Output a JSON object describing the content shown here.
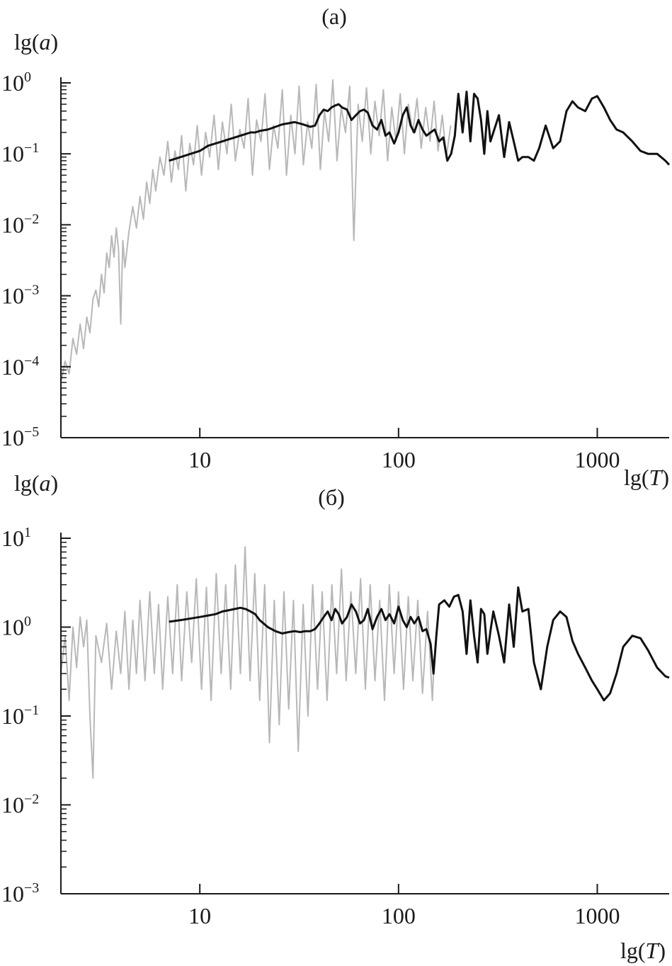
{
  "figure": {
    "colors": {
      "raw": "#b8b8b8",
      "smooth": "#111111",
      "axis": "#1a1a1a"
    }
  },
  "chart_data": [
    {
      "type": "line",
      "panel_label": "(a)",
      "ylabel": "lg(a)",
      "xlabel": "lg(T)",
      "xscale": "log",
      "yscale": "log",
      "xlim": [
        2,
        2300
      ],
      "ylim": [
        1e-05,
        1
      ],
      "x_ticks": [
        10,
        100,
        1000
      ],
      "x_tick_labels": [
        "10",
        "100",
        "1000"
      ],
      "y_ticks": [
        1e-05,
        0.0001,
        0.001,
        0.01,
        0.1,
        1
      ],
      "y_tick_labels": [
        {
          "base": "10",
          "exp": "−5"
        },
        {
          "base": "10",
          "exp": "−4"
        },
        {
          "base": "10",
          "exp": "−3"
        },
        {
          "base": "10",
          "exp": "−2"
        },
        {
          "base": "10",
          "exp": "−1"
        },
        {
          "base": "10",
          "exp": "0"
        }
      ],
      "series": [
        {
          "style": "raw",
          "x": [
            2.0,
            2.1,
            2.2,
            2.3,
            2.4,
            2.5,
            2.6,
            2.7,
            2.8,
            2.9,
            3.0,
            3.1,
            3.2,
            3.3,
            3.4,
            3.5,
            3.6,
            3.7,
            3.8,
            3.9,
            4.0,
            4.1,
            4.2,
            4.4,
            4.6,
            4.8,
            5.0,
            5.2,
            5.4,
            5.6,
            5.8,
            6.0,
            6.3,
            6.6,
            6.9,
            7.2,
            7.5,
            7.8,
            8.1,
            8.5,
            8.9,
            9.3,
            9.7,
            10.2,
            10.7,
            11.2,
            11.8,
            12.4,
            13.0,
            13.7,
            14.4,
            15.1,
            15.9,
            16.7,
            17.5,
            18.4,
            19.3,
            20.3,
            21.3,
            22.4,
            23.5,
            24.7,
            26.0,
            27.3,
            28.7,
            30.1,
            31.6,
            33.2,
            34.9,
            36.6,
            38.5,
            40.4,
            42.4,
            44.5,
            46.7,
            49.0,
            51.5,
            54.1,
            56.8,
            59.6,
            62.6,
            65.7,
            69.0,
            72.5,
            76.1,
            79.9,
            83.9,
            88.1,
            92.5,
            97.1,
            102,
            107,
            112,
            118,
            124,
            130,
            137,
            144,
            151,
            158,
            166,
            174,
            183
          ],
          "y": [
            6e-05,
            0.00012,
            8e-05,
            0.00025,
            0.00015,
            0.0004,
            0.00018,
            0.0005,
            0.0003,
            0.0009,
            0.0012,
            0.0007,
            0.002,
            0.0011,
            0.004,
            0.0025,
            0.007,
            0.0035,
            0.009,
            0.0045,
            0.0004,
            0.006,
            0.0025,
            0.008,
            0.018,
            0.009,
            0.025,
            0.012,
            0.04,
            0.02,
            0.06,
            0.03,
            0.09,
            0.05,
            0.15,
            0.04,
            0.11,
            0.06,
            0.18,
            0.03,
            0.14,
            0.07,
            0.25,
            0.05,
            0.2,
            0.09,
            0.35,
            0.06,
            0.28,
            0.1,
            0.5,
            0.08,
            0.22,
            0.12,
            0.6,
            0.05,
            0.3,
            0.15,
            0.7,
            0.06,
            0.25,
            0.12,
            0.8,
            0.05,
            0.35,
            0.1,
            0.9,
            0.07,
            0.28,
            0.12,
            0.95,
            0.06,
            0.4,
            0.15,
            1.1,
            0.08,
            0.45,
            0.2,
            0.9,
            0.006,
            0.5,
            0.15,
            0.85,
            0.1,
            0.55,
            0.18,
            0.8,
            0.08,
            0.45,
            0.15,
            0.7,
            0.1,
            0.5,
            0.2,
            0.6,
            0.12,
            0.45,
            0.15,
            0.55,
            0.11,
            0.35,
            0.09,
            0.25
          ]
        },
        {
          "style": "smooth",
          "x": [
            7,
            8,
            9,
            10,
            11,
            12,
            13,
            14,
            15,
            16,
            17,
            18,
            19,
            20,
            22,
            24,
            26,
            28,
            30,
            33,
            36,
            38,
            40,
            42,
            44,
            46,
            48,
            50,
            52,
            55,
            58,
            61,
            64,
            67,
            70,
            74,
            78,
            82,
            86,
            90,
            95,
            100,
            105,
            110,
            115,
            120,
            126,
            132,
            138,
            145,
            152,
            160,
            168,
            176,
            184,
            192,
            200,
            210,
            220,
            230,
            240,
            250,
            260,
            270,
            280,
            290,
            300,
            320,
            340,
            360,
            380,
            400,
            420,
            450,
            480,
            510,
            550,
            600,
            650,
            700,
            750,
            800,
            870,
            940,
            1000,
            1080,
            1160,
            1250,
            1350,
            1500,
            1650,
            1800,
            2000,
            2200,
            2300
          ],
          "y": [
            0.08,
            0.09,
            0.1,
            0.11,
            0.13,
            0.14,
            0.15,
            0.16,
            0.17,
            0.18,
            0.19,
            0.2,
            0.2,
            0.21,
            0.22,
            0.24,
            0.26,
            0.27,
            0.28,
            0.26,
            0.24,
            0.25,
            0.35,
            0.42,
            0.4,
            0.45,
            0.48,
            0.5,
            0.45,
            0.42,
            0.3,
            0.35,
            0.4,
            0.42,
            0.38,
            0.25,
            0.22,
            0.3,
            0.18,
            0.2,
            0.14,
            0.2,
            0.35,
            0.45,
            0.25,
            0.2,
            0.3,
            0.22,
            0.18,
            0.2,
            0.22,
            0.15,
            0.17,
            0.08,
            0.1,
            0.18,
            0.7,
            0.2,
            0.75,
            0.15,
            0.7,
            0.6,
            0.3,
            0.1,
            0.4,
            0.15,
            0.2,
            0.35,
            0.09,
            0.28,
            0.15,
            0.08,
            0.09,
            0.09,
            0.08,
            0.12,
            0.25,
            0.12,
            0.15,
            0.4,
            0.55,
            0.45,
            0.4,
            0.6,
            0.65,
            0.45,
            0.3,
            0.22,
            0.2,
            0.15,
            0.11,
            0.1,
            0.1,
            0.08,
            0.07
          ]
        }
      ]
    },
    {
      "type": "line",
      "panel_label": "(б)",
      "ylabel": "lg(a)",
      "xlabel": "lg(T)",
      "xscale": "log",
      "yscale": "log",
      "xlim": [
        2,
        2300
      ],
      "ylim": [
        0.001,
        10
      ],
      "x_ticks": [
        10,
        100,
        1000
      ],
      "x_tick_labels": [
        "10",
        "100",
        "1000"
      ],
      "y_ticks": [
        0.001,
        0.01,
        0.1,
        1,
        10
      ],
      "y_tick_labels": [
        {
          "base": "10",
          "exp": "−3"
        },
        {
          "base": "10",
          "exp": "−2"
        },
        {
          "base": "10",
          "exp": "−1"
        },
        {
          "base": "10",
          "exp": "0"
        },
        {
          "base": "10",
          "exp": "1"
        }
      ],
      "series": [
        {
          "style": "raw",
          "x": [
            2.0,
            2.1,
            2.2,
            2.3,
            2.4,
            2.5,
            2.6,
            2.7,
            2.8,
            2.9,
            3.0,
            3.2,
            3.4,
            3.6,
            3.8,
            4.0,
            4.2,
            4.4,
            4.6,
            4.8,
            5.0,
            5.3,
            5.6,
            5.9,
            6.2,
            6.5,
            6.9,
            7.3,
            7.7,
            8.1,
            8.6,
            9.1,
            9.6,
            10.2,
            10.8,
            11.4,
            12.1,
            12.8,
            13.5,
            14.3,
            15.1,
            16.0,
            16.9,
            17.9,
            18.9,
            20.0,
            21.2,
            22.4,
            23.7,
            25.1,
            26.5,
            28.0,
            29.6,
            31.3,
            33.1,
            35.0,
            37.0,
            39.1,
            41.3,
            43.7,
            46.2,
            48.8,
            51.6,
            54.5,
            57.6,
            60.9,
            64.4,
            68.1,
            72.0,
            76.1,
            80.4,
            85.0,
            89.9,
            95.0,
            100,
            106,
            112,
            118,
            125,
            132,
            140,
            148,
            150
          ],
          "y": [
            0.3,
            0.8,
            0.15,
            1.0,
            0.35,
            1.3,
            0.6,
            1.2,
            0.1,
            0.02,
            0.8,
            0.4,
            1.1,
            0.2,
            0.9,
            0.3,
            1.5,
            0.2,
            1.2,
            0.3,
            2.0,
            0.25,
            2.5,
            0.3,
            1.8,
            0.2,
            2.2,
            0.3,
            3.0,
            0.25,
            2.5,
            0.4,
            3.5,
            0.2,
            2.8,
            0.15,
            4.0,
            0.3,
            3.0,
            0.2,
            5.0,
            0.3,
            8.0,
            0.25,
            4.0,
            0.15,
            3.0,
            0.05,
            2.0,
            0.08,
            2.5,
            0.12,
            2.0,
            0.04,
            1.8,
            0.1,
            3.0,
            0.2,
            2.5,
            0.15,
            3.0,
            0.3,
            4.5,
            0.25,
            2.5,
            0.3,
            3.5,
            0.2,
            3.0,
            0.25,
            2.0,
            0.15,
            3.0,
            0.3,
            2.5,
            0.2,
            2.2,
            0.25,
            2.0,
            0.18,
            1.5,
            0.15,
            0.3
          ]
        },
        {
          "style": "smooth",
          "x": [
            7,
            8,
            9,
            10,
            11,
            12,
            13,
            14,
            15,
            16,
            17,
            18,
            19,
            20,
            22,
            24,
            26,
            28,
            30,
            32,
            34,
            36,
            38,
            40,
            42,
            44,
            46,
            48,
            50,
            52,
            55,
            58,
            61,
            64,
            67,
            70,
            74,
            78,
            82,
            86,
            90,
            95,
            100,
            105,
            110,
            115,
            120,
            126,
            132,
            138,
            145,
            150,
            155,
            160,
            170,
            180,
            190,
            200,
            210,
            220,
            230,
            240,
            250,
            260,
            270,
            280,
            290,
            300,
            320,
            340,
            360,
            380,
            400,
            420,
            450,
            480,
            520,
            560,
            600,
            650,
            700,
            750,
            800,
            870,
            940,
            1000,
            1080,
            1160,
            1250,
            1350,
            1500,
            1650,
            1800,
            2000,
            2200,
            2300
          ],
          "y": [
            1.15,
            1.2,
            1.25,
            1.3,
            1.35,
            1.4,
            1.5,
            1.55,
            1.6,
            1.65,
            1.6,
            1.5,
            1.4,
            1.2,
            1.0,
            0.9,
            0.85,
            0.88,
            0.9,
            0.88,
            0.9,
            0.9,
            0.95,
            1.1,
            1.3,
            1.5,
            1.2,
            1.6,
            1.4,
            1.1,
            1.3,
            1.8,
            1.5,
            1.1,
            1.2,
            1.6,
            0.95,
            1.3,
            1.6,
            1.2,
            1.4,
            1.1,
            1.7,
            1.2,
            1.0,
            1.3,
            1.1,
            1.3,
            0.9,
            0.95,
            0.65,
            0.3,
            0.8,
            1.8,
            2.0,
            1.7,
            2.2,
            2.3,
            1.5,
            0.5,
            2.0,
            0.8,
            0.4,
            1.6,
            1.4,
            0.5,
            0.9,
            1.5,
            0.8,
            0.4,
            1.8,
            0.6,
            2.8,
            1.5,
            1.6,
            0.4,
            0.2,
            0.6,
            1.2,
            1.5,
            1.3,
            0.7,
            0.5,
            0.35,
            0.25,
            0.2,
            0.15,
            0.18,
            0.3,
            0.6,
            0.8,
            0.75,
            0.55,
            0.35,
            0.28,
            0.27
          ]
        }
      ]
    }
  ]
}
